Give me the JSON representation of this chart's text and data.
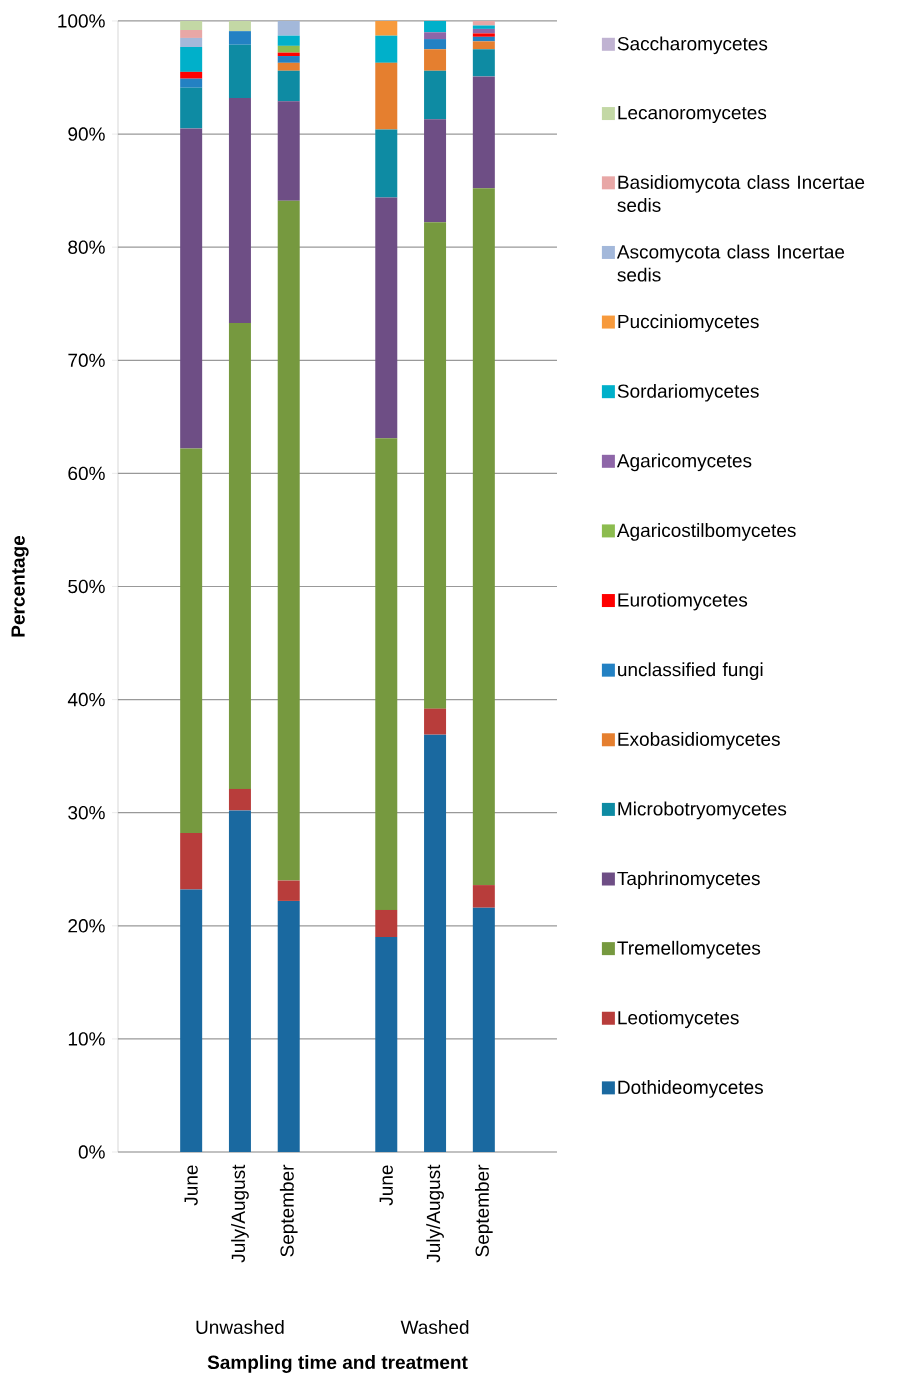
{
  "chart_data": {
    "type": "bar",
    "stacked": true,
    "xlabel": "Sampling time and treatment",
    "ylabel": "Percentage",
    "categories": [
      null,
      "June",
      "July/August",
      "September",
      null,
      "June",
      "July/August",
      "September",
      null
    ],
    "annotations": [
      "Unwashed",
      "Washed"
    ],
    "ylim": [
      0,
      100
    ],
    "yticks": [
      {
        "value": 0,
        "label": "0%"
      },
      {
        "value": 10,
        "label": "10%"
      },
      {
        "value": 20,
        "label": "20%"
      },
      {
        "value": 30,
        "label": "30%"
      },
      {
        "value": 40,
        "label": "40%"
      },
      {
        "value": 50,
        "label": "50%"
      },
      {
        "value": 60,
        "label": "60%"
      },
      {
        "value": 70,
        "label": "70%"
      },
      {
        "value": 80,
        "label": "80%"
      },
      {
        "value": 90,
        "label": "90%"
      },
      {
        "value": 100,
        "label": "100%"
      }
    ],
    "grid": "y",
    "legend": "right",
    "series": [
      {
        "name": "Dothideomycetes",
        "color": "#1a69a0",
        "values": [
          null,
          23.2,
          30.2,
          22.2,
          null,
          19.0,
          36.9,
          21.6,
          null
        ]
      },
      {
        "name": "Leotiomycetes",
        "color": "#b83d3b",
        "values": [
          null,
          5.0,
          1.9,
          1.8,
          null,
          2.4,
          2.3,
          2.0,
          null
        ]
      },
      {
        "name": "Tremellomycetes",
        "color": "#76993f",
        "values": [
          null,
          34.0,
          41.2,
          60.1,
          null,
          41.7,
          43.0,
          61.6,
          null
        ]
      },
      {
        "name": "Taphrinomycetes",
        "color": "#6e4e85",
        "values": [
          null,
          28.3,
          19.9,
          8.8,
          null,
          21.3,
          9.1,
          9.9,
          null
        ]
      },
      {
        "name": "Microbotryomycetes",
        "color": "#0e8ba3",
        "values": [
          null,
          3.6,
          4.7,
          2.7,
          null,
          6.0,
          4.3,
          2.4,
          null
        ]
      },
      {
        "name": "Exobasidiomycetes",
        "color": "#e57f2f",
        "values": [
          null,
          0,
          0,
          0.7,
          null,
          5.9,
          1.9,
          0.7,
          null
        ]
      },
      {
        "name": "unclassified fungi",
        "color": "#2381c3",
        "values": [
          null,
          0.8,
          1.2,
          0.6,
          null,
          0,
          0.9,
          0.4,
          null
        ]
      },
      {
        "name": "Eurotiomycetes",
        "color": "#ff0000",
        "values": [
          null,
          0.6,
          0,
          0.3,
          null,
          0,
          0,
          0.3,
          null
        ]
      },
      {
        "name": "Agaricostilbomycetes",
        "color": "#8cbc4f",
        "values": [
          null,
          0,
          0,
          0.6,
          null,
          0,
          0,
          0,
          null
        ]
      },
      {
        "name": "Agaricomycetes",
        "color": "#8e66a8",
        "values": [
          null,
          0,
          0,
          0,
          null,
          0,
          0.6,
          0.4,
          null
        ]
      },
      {
        "name": "Sordariomycetes",
        "color": "#00b0ca",
        "values": [
          null,
          2.2,
          0,
          0.9,
          null,
          2.4,
          1.0,
          0.3,
          null
        ]
      },
      {
        "name": "Pucciniomycetes",
        "color": "#f79a3c",
        "values": [
          null,
          0,
          0,
          0,
          null,
          1.3,
          0,
          0,
          null
        ]
      },
      {
        "name": "Ascomycota class Incertae sedis",
        "color": "#a3b8da",
        "values": [
          null,
          0.8,
          0,
          1.3,
          null,
          0,
          0,
          0,
          null
        ]
      },
      {
        "name": "Basidiomycota class Incertae sedis",
        "color": "#e8a7a6",
        "values": [
          null,
          0.7,
          0,
          0,
          null,
          0,
          0,
          0.4,
          null
        ]
      },
      {
        "name": "Lecanoromycetes",
        "color": "#c3d8a5",
        "values": [
          null,
          0.8,
          0.9,
          0,
          null,
          0,
          0,
          0,
          null
        ]
      },
      {
        "name": "Saccharomycetes",
        "color": "#c0b3d2",
        "values": [
          null,
          0,
          0,
          0,
          null,
          0,
          0,
          0,
          null
        ]
      }
    ]
  }
}
